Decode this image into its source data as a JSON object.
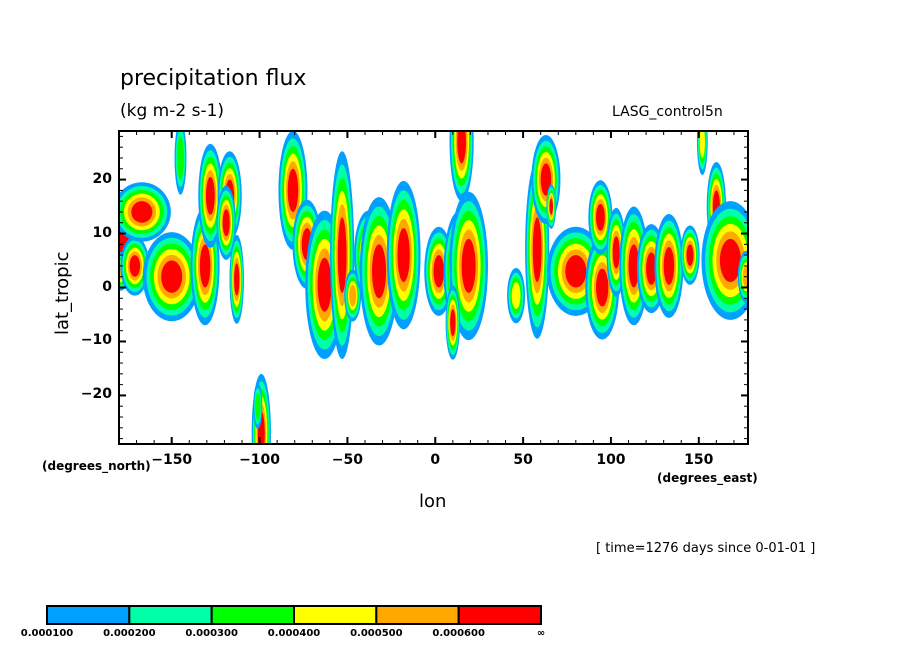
{
  "chart_data": {
    "type": "heatmap",
    "subtype": "filled-contour",
    "title": "precipitation flux",
    "units": "(kg m-2 s-1)",
    "dataset": "LASG_control5n",
    "xlabel": "lon",
    "ylabel": "lat_tropic",
    "x_units": "(degrees_east)",
    "y_units": "(degrees_north)",
    "time_annotation": "[ time=1276 days since 0-01-01 ]",
    "xlim": [
      -180,
      178
    ],
    "ylim": [
      -29,
      29
    ],
    "x_ticks": [
      -150,
      -100,
      -50,
      0,
      50,
      100,
      150
    ],
    "x_tick_labels": [
      "−150",
      "−100",
      "−50",
      "0",
      "50",
      "100",
      "150"
    ],
    "y_ticks": [
      20,
      10,
      0,
      -10,
      -20
    ],
    "y_tick_labels": [
      "20",
      "10",
      "0",
      "−10",
      "−20"
    ],
    "grid": false,
    "legend": {
      "placement": "bottom-left",
      "levels": [
        "0.000100",
        "0.000200",
        "0.000300",
        "0.000400",
        "0.000500",
        "0.000600",
        "∞"
      ],
      "colors": [
        "#00a0ff",
        "#00ffa8",
        "#00ff00",
        "#ffff00",
        "#ffa800",
        "#ff0000"
      ]
    },
    "features": [
      {
        "lon": -178,
        "lat": 8,
        "rx": 4,
        "ry": 3,
        "peak": 6
      },
      {
        "lon": -179,
        "lat": 3,
        "rx": 2,
        "ry": 1.5,
        "peak": 5
      },
      {
        "lon": -171,
        "lat": 4,
        "rx": 3,
        "ry": 2,
        "peak": 6
      },
      {
        "lon": -167,
        "lat": 14,
        "rx": 6,
        "ry": 2,
        "peak": 6
      },
      {
        "lon": -161,
        "lat": 4,
        "rx": 2,
        "ry": 1.5,
        "peak": 3
      },
      {
        "lon": -150,
        "lat": 2,
        "rx": 6,
        "ry": 3,
        "peak": 6
      },
      {
        "lon": -145,
        "lat": 24,
        "rx": 2,
        "ry": 4,
        "peak": 3
      },
      {
        "lon": -131,
        "lat": 4,
        "rx": 3,
        "ry": 4,
        "peak": 6
      },
      {
        "lon": -128,
        "lat": 17,
        "rx": 2.5,
        "ry": 3.5,
        "peak": 6
      },
      {
        "lon": -117,
        "lat": 17,
        "rx": 2.5,
        "ry": 3,
        "peak": 6
      },
      {
        "lon": -119,
        "lat": 12,
        "rx": 2,
        "ry": 2.5,
        "peak": 6
      },
      {
        "lon": -113,
        "lat": 1.5,
        "rx": 1.5,
        "ry": 3,
        "peak": 6
      },
      {
        "lon": -81,
        "lat": 18,
        "rx": 3,
        "ry": 4,
        "peak": 6
      },
      {
        "lon": -73,
        "lat": 8,
        "rx": 3,
        "ry": 3,
        "peak": 6
      },
      {
        "lon": -63,
        "lat": 0.5,
        "rx": 4,
        "ry": 5,
        "peak": 6
      },
      {
        "lon": -53,
        "lat": 6,
        "rx": 2.5,
        "ry": 7,
        "peak": 6
      },
      {
        "lon": -47,
        "lat": -1.5,
        "rx": 2,
        "ry": 2,
        "peak": 5
      },
      {
        "lon": -38,
        "lat": 6,
        "rx": 3,
        "ry": 3,
        "peak": 6
      },
      {
        "lon": -32,
        "lat": 3,
        "rx": 4,
        "ry": 5,
        "peak": 6
      },
      {
        "lon": -18,
        "lat": 6,
        "rx": 3.5,
        "ry": 5,
        "peak": 6
      },
      {
        "lon": 2,
        "lat": 3,
        "rx": 3,
        "ry": 3,
        "peak": 6
      },
      {
        "lon": 13,
        "lat": 3,
        "rx": 3,
        "ry": 4,
        "peak": 6
      },
      {
        "lon": 19,
        "lat": 4,
        "rx": 4,
        "ry": 5,
        "peak": 6
      },
      {
        "lon": 15,
        "lat": 27,
        "rx": 2.5,
        "ry": 4,
        "peak": 6
      },
      {
        "lon": 10,
        "lat": -6.5,
        "rx": 1.5,
        "ry": 2.5,
        "peak": 6
      },
      {
        "lon": 46,
        "lat": -1.5,
        "rx": 2.5,
        "ry": 2.5,
        "peak": 4
      },
      {
        "lon": 58,
        "lat": 7,
        "rx": 2.5,
        "ry": 6,
        "peak": 6
      },
      {
        "lon": 63,
        "lat": 20,
        "rx": 3,
        "ry": 3,
        "peak": 6
      },
      {
        "lon": 66,
        "lat": 15,
        "rx": 1,
        "ry": 1.5,
        "peak": 6
      },
      {
        "lon": 80,
        "lat": 3,
        "rx": 6,
        "ry": 3,
        "peak": 6
      },
      {
        "lon": 95,
        "lat": 0,
        "rx": 3.5,
        "ry": 3.5,
        "peak": 6
      },
      {
        "lon": 94,
        "lat": 13,
        "rx": 2.5,
        "ry": 2.5,
        "peak": 6
      },
      {
        "lon": 103,
        "lat": 6.5,
        "rx": 2,
        "ry": 3,
        "peak": 6
      },
      {
        "lon": 113,
        "lat": 4,
        "rx": 3,
        "ry": 4,
        "peak": 6
      },
      {
        "lon": 123,
        "lat": 3.5,
        "rx": 3,
        "ry": 3,
        "peak": 6
      },
      {
        "lon": 133,
        "lat": 4,
        "rx": 3,
        "ry": 3.5,
        "peak": 6
      },
      {
        "lon": 145,
        "lat": 6,
        "rx": 2,
        "ry": 2,
        "peak": 6
      },
      {
        "lon": 160,
        "lat": 15,
        "rx": 2,
        "ry": 3,
        "peak": 6
      },
      {
        "lon": 168,
        "lat": 5,
        "rx": 6,
        "ry": 4,
        "peak": 6
      },
      {
        "lon": 177,
        "lat": 2,
        "rx": 2,
        "ry": 2,
        "peak": 5
      },
      {
        "lon": 152,
        "lat": 27,
        "rx": 1.5,
        "ry": 3,
        "peak": 4
      },
      {
        "lon": -99,
        "lat": -27,
        "rx": 2,
        "ry": 4,
        "peak": 6
      },
      {
        "lon": -101,
        "lat": -22,
        "rx": 1.5,
        "ry": 2.5,
        "peak": 3
      }
    ]
  }
}
